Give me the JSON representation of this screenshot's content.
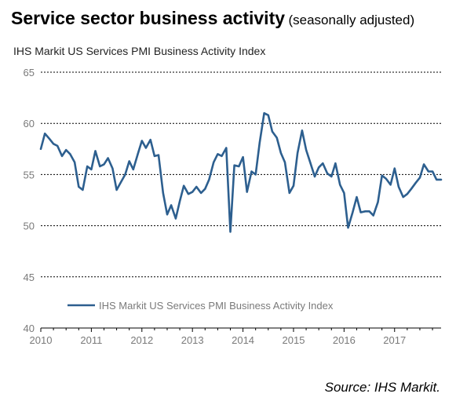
{
  "title": "Service sector business activity",
  "title_note": "(seasonally adjusted)",
  "subtitle": "IHS  Markit US Services PMI Business Activity Index",
  "source": "Source: IHS Markit.",
  "colors": {
    "series": "#2d5f8f",
    "grid": "#000000",
    "tick": "#7a7a7a"
  },
  "chart_data": {
    "type": "line",
    "grid": true,
    "legend_position": "bottom-left",
    "ylim": [
      40,
      65
    ],
    "yticks": [
      40,
      45,
      50,
      55,
      60,
      65
    ],
    "xlim": [
      2010.0,
      2017.92
    ],
    "xticks": [
      "2010",
      "2011",
      "2012",
      "2013",
      "2014",
      "2015",
      "2016",
      "2017"
    ],
    "series": [
      {
        "name": "IHS Markit US Services PMI Business Activity Index",
        "color": "#2d5f8f",
        "x": [
          2010.0,
          2010.08,
          2010.17,
          2010.25,
          2010.33,
          2010.42,
          2010.5,
          2010.58,
          2010.67,
          2010.75,
          2010.83,
          2010.92,
          2011.0,
          2011.08,
          2011.17,
          2011.25,
          2011.33,
          2011.42,
          2011.5,
          2011.58,
          2011.67,
          2011.75,
          2011.83,
          2011.92,
          2012.0,
          2012.08,
          2012.17,
          2012.25,
          2012.33,
          2012.42,
          2012.5,
          2012.58,
          2012.67,
          2012.75,
          2012.83,
          2012.92,
          2013.0,
          2013.08,
          2013.17,
          2013.25,
          2013.33,
          2013.42,
          2013.5,
          2013.58,
          2013.67,
          2013.75,
          2013.83,
          2013.92,
          2014.0,
          2014.08,
          2014.17,
          2014.25,
          2014.33,
          2014.42,
          2014.5,
          2014.58,
          2014.67,
          2014.75,
          2014.83,
          2014.92,
          2015.0,
          2015.08,
          2015.17,
          2015.25,
          2015.33,
          2015.42,
          2015.5,
          2015.58,
          2015.67,
          2015.75,
          2015.83,
          2015.92,
          2016.0,
          2016.08,
          2016.17,
          2016.25,
          2016.33,
          2016.42,
          2016.5,
          2016.58,
          2016.67,
          2016.75,
          2016.83,
          2016.92,
          2017.0,
          2017.08,
          2017.17,
          2017.25,
          2017.33,
          2017.42,
          2017.5,
          2017.58,
          2017.67,
          2017.75,
          2017.83,
          2017.92
        ],
        "values": [
          57.5,
          59.0,
          58.5,
          58.0,
          57.8,
          56.8,
          57.4,
          57.0,
          56.2,
          53.8,
          53.5,
          55.8,
          55.5,
          57.3,
          55.8,
          56.0,
          56.6,
          55.6,
          53.5,
          54.2,
          55.0,
          56.3,
          55.5,
          57.0,
          58.3,
          57.6,
          58.4,
          56.8,
          56.9,
          53.2,
          51.1,
          52.0,
          50.7,
          52.4,
          53.9,
          53.1,
          53.3,
          53.8,
          53.2,
          53.6,
          54.5,
          56.2,
          57.0,
          56.8,
          57.6,
          49.4,
          55.9,
          55.8,
          56.7,
          53.3,
          55.3,
          55.0,
          58.1,
          61.0,
          60.8,
          59.2,
          58.6,
          57.1,
          56.2,
          53.2,
          53.9,
          57.1,
          59.3,
          57.4,
          56.2,
          54.8,
          55.7,
          56.1,
          55.1,
          54.8,
          56.1,
          54.0,
          53.2,
          49.8,
          51.3,
          52.8,
          51.3,
          51.4,
          51.4,
          51.0,
          52.3,
          54.9,
          54.6,
          54.0,
          55.6,
          53.8,
          52.8,
          53.1,
          53.6,
          54.2,
          54.7,
          56.0,
          55.3,
          55.3,
          54.5,
          54.5
        ]
      }
    ]
  }
}
